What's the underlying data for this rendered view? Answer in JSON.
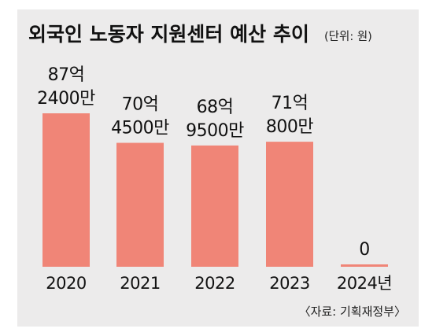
{
  "chart_data": {
    "type": "bar",
    "title": "외국인 노동자 지원센터 예산 추이",
    "unit_note": "(단위: 원)",
    "categories": [
      "2020",
      "2021",
      "2022",
      "2023",
      "2024년"
    ],
    "values": [
      8724000000,
      7045000000,
      6895000000,
      7108000000,
      0
    ],
    "value_labels": [
      [
        "87억",
        "2400만"
      ],
      [
        "70억",
        "4500만"
      ],
      [
        "68억",
        "9500만"
      ],
      [
        "71억",
        "800만"
      ],
      [
        "0"
      ]
    ],
    "xlabel": "",
    "ylabel": "",
    "ylim": [
      0,
      8724000000
    ],
    "grid": false,
    "legend": "none",
    "source": "〈자료: 기획재정부〉",
    "colors": {
      "bar": "#f08577",
      "background": "#ecebeb",
      "text": "#111111"
    }
  }
}
